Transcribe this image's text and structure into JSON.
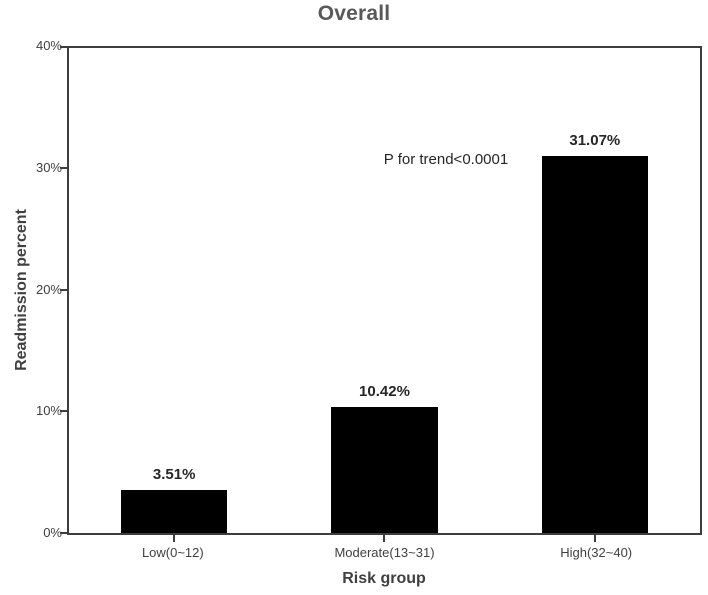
{
  "chart_data": {
    "type": "bar",
    "title": "Overall",
    "categories": [
      "Low(0~12)",
      "Moderate(13~31)",
      "High(32~40)"
    ],
    "values": [
      3.51,
      10.42,
      31.07
    ],
    "value_labels": [
      "3.51%",
      "10.42%",
      "31.07%"
    ],
    "annotation": "P for trend<0.0001",
    "xlabel": "Risk group",
    "ylabel": "Readmission percent",
    "ylim": [
      0,
      40
    ],
    "yticks": [
      "0%",
      "10%",
      "20%",
      "30%",
      "40%"
    ],
    "grid": false,
    "legend": "none",
    "bar_color": "#000000",
    "title_color": "#595959",
    "text_color": "#404040",
    "axis_color": "#3d3d3d",
    "background_color": "#ffffff"
  }
}
